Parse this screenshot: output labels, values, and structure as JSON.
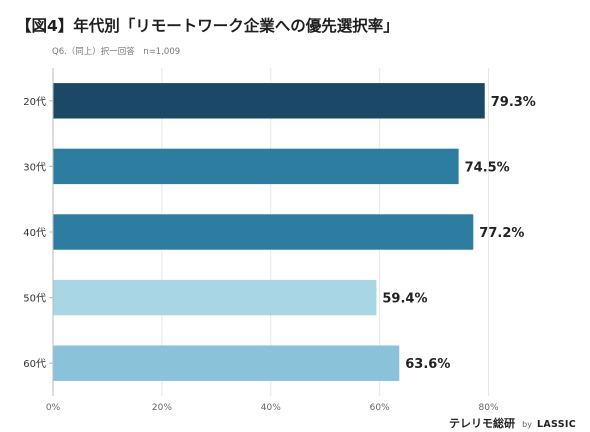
{
  "chart_data": {
    "type": "bar",
    "orientation": "horizontal",
    "title": "【図4】年代別「リモートワーク企業への優先選択率」",
    "subtitle": "Q6.（同上）択一回答　n=1,009",
    "categories": [
      "20代",
      "30代",
      "40代",
      "50代",
      "60代"
    ],
    "values": [
      79.3,
      74.5,
      77.2,
      59.4,
      63.6
    ],
    "value_labels": [
      "79.3%",
      "74.5%",
      "77.2%",
      "59.4%",
      "63.6%"
    ],
    "bar_colors": [
      "#1b4965",
      "#2c7da0",
      "#2c7da0",
      "#a9d6e5",
      "#89c2d9"
    ],
    "xlim": [
      0,
      90
    ],
    "xticks": [
      0,
      20,
      40,
      60,
      80
    ],
    "xtick_labels": [
      "0%",
      "20%",
      "40%",
      "60%",
      "80%"
    ],
    "grid": true,
    "legend": "none"
  },
  "brand": {
    "main": "テレリモ総研",
    "by": "by",
    "company": "LASSIC"
  },
  "colors": {
    "gridline": "#e6e6e6",
    "axis": "#bbbbbb",
    "label": "#333333"
  }
}
